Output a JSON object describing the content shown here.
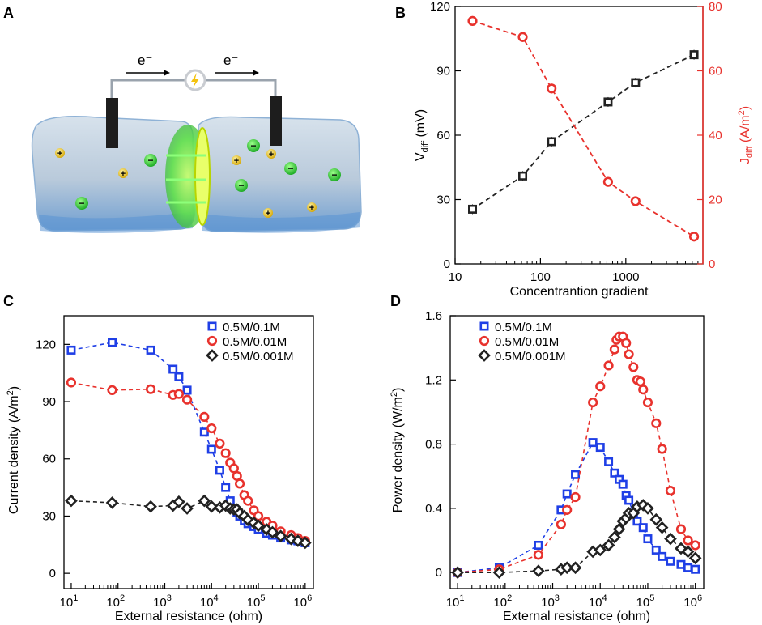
{
  "panels": {
    "a": "A",
    "b": "B",
    "c": "C",
    "d": "D"
  },
  "schematic": {
    "electron_left": "e⁻",
    "electron_right": "e⁻",
    "plus": "+",
    "minus": "−"
  },
  "colors": {
    "black": "#222222",
    "red": "#e8322d",
    "blue": "#1f3fe6",
    "dark_red": "#e8322d",
    "gel": "#c9d8e6",
    "bulb": "#f4c20d"
  },
  "chart_data": [
    {
      "id": "B",
      "type": "scatter",
      "xscale": "log",
      "xlim": [
        10,
        8000
      ],
      "x_ticks": [
        10,
        100,
        1000
      ],
      "x_tick_labels": [
        "10",
        "100",
        "1000"
      ],
      "xlabel": "Concentrantion gradient",
      "ylabel_left_main": "V",
      "ylabel_left_sub": "diff",
      "ylabel_left_unit": " (mV)",
      "ylim_left": [
        0,
        120
      ],
      "y_ticks_left": [
        0,
        30,
        60,
        90,
        120
      ],
      "ylabel_right_main": "J",
      "ylabel_right_sub": "diff",
      "ylabel_right_unit": " (A/m",
      "ylabel_right_sup": "2",
      "ylabel_right_close": ")",
      "ylim_right": [
        0,
        80
      ],
      "y_ticks_right": [
        0,
        20,
        40,
        60,
        80
      ],
      "x": [
        16,
        62,
        135,
        620,
        1300,
        6300
      ],
      "series": [
        {
          "name": "Vdiff",
          "axis": "left",
          "color": "#222222",
          "marker": "square",
          "values": [
            25.5,
            41,
            57,
            75.5,
            84.5,
            97.5
          ]
        },
        {
          "name": "Jdiff",
          "axis": "right",
          "color": "#e8322d",
          "marker": "circle",
          "values": [
            75.5,
            70.5,
            54.5,
            25.5,
            19.5,
            8.5
          ]
        }
      ]
    },
    {
      "id": "C",
      "type": "scatter",
      "xscale": "log",
      "xlim": [
        7,
        1500000
      ],
      "x_ticks": [
        10,
        100,
        1000,
        10000,
        100000,
        1000000
      ],
      "x_tick_bases": [
        "10",
        "10",
        "10",
        "10",
        "10",
        "10"
      ],
      "x_tick_exps": [
        "1",
        "2",
        "3",
        "4",
        "5",
        "6"
      ],
      "xlabel": "External resistance (ohm)",
      "ylabel_main": "Current density (A/m",
      "ylabel_sup": "2",
      "ylabel_close": ")",
      "ylim": [
        -8,
        135
      ],
      "y_ticks": [
        0,
        30,
        60,
        90,
        120
      ],
      "legend": [
        "0.5M/0.1M",
        "0.5M/0.01M",
        "0.5M/0.001M"
      ],
      "series": [
        {
          "name": "0.5M/0.1M",
          "color": "#1f3fe6",
          "marker": "square",
          "x": [
            10,
            75,
            500,
            1500,
            2000,
            3000,
            7000,
            10000,
            15000,
            20000,
            25000,
            30000,
            35000,
            40000,
            50000,
            60000,
            80000,
            100000,
            150000,
            200000,
            300000,
            500000,
            700000,
            1000000
          ],
          "y": [
            117,
            121,
            117,
            107,
            103,
            96,
            74,
            65,
            54,
            45,
            38,
            34,
            32,
            30,
            27.5,
            26,
            24.5,
            23,
            21,
            20,
            18.5,
            17.5,
            17,
            16
          ]
        },
        {
          "name": "0.5M/0.01M",
          "color": "#e8322d",
          "marker": "circle",
          "x": [
            10,
            75,
            500,
            1500,
            2000,
            3000,
            7000,
            10000,
            15000,
            20000,
            25000,
            30000,
            35000,
            40000,
            50000,
            60000,
            80000,
            100000,
            150000,
            200000,
            300000,
            500000,
            700000,
            1000000
          ],
          "y": [
            100,
            96,
            96.5,
            93.5,
            94,
            91,
            82,
            76,
            68,
            63,
            58,
            55,
            51,
            47,
            41,
            38,
            33,
            30,
            27,
            25,
            22,
            20,
            18.5,
            17
          ]
        },
        {
          "name": "0.5M/0.001M",
          "color": "#222222",
          "marker": "diamond",
          "x": [
            10,
            75,
            500,
            1500,
            2000,
            3000,
            7000,
            10000,
            15000,
            20000,
            25000,
            30000,
            35000,
            40000,
            50000,
            60000,
            80000,
            100000,
            150000,
            200000,
            300000,
            500000,
            700000,
            1000000
          ],
          "y": [
            38,
            37,
            35,
            35.5,
            37.5,
            34,
            38,
            35,
            34.5,
            35.5,
            34,
            33.5,
            33.5,
            31.5,
            30,
            28,
            26.5,
            25,
            23,
            21.5,
            19.5,
            18,
            17,
            16
          ]
        }
      ]
    },
    {
      "id": "D",
      "type": "scatter",
      "xscale": "log",
      "xlim": [
        7,
        1500000
      ],
      "x_ticks": [
        10,
        100,
        1000,
        10000,
        100000,
        1000000
      ],
      "x_tick_bases": [
        "10",
        "10",
        "10",
        "10",
        "10",
        "10"
      ],
      "x_tick_exps": [
        "1",
        "2",
        "3",
        "4",
        "5",
        "6"
      ],
      "xlabel": "External resistance (ohm)",
      "ylabel_main": "Power density (W/m",
      "ylabel_sup": "2",
      "ylabel_close": ")",
      "ylim": [
        -0.1,
        1.6
      ],
      "y_ticks": [
        0,
        0.4,
        0.8,
        1.2,
        1.6
      ],
      "y_tick_labels": [
        "0",
        "0.4",
        "0.8",
        "1.2",
        "1.6"
      ],
      "legend": [
        "0.5M/0.1M",
        "0.5M/0.01M",
        "0.5M/0.001M"
      ],
      "series": [
        {
          "name": "0.5M/0.1M",
          "color": "#1f3fe6",
          "marker": "square",
          "x": [
            10,
            75,
            500,
            1500,
            2000,
            3000,
            7000,
            10000,
            15000,
            20000,
            25000,
            30000,
            35000,
            40000,
            50000,
            60000,
            80000,
            100000,
            150000,
            200000,
            300000,
            500000,
            700000,
            1000000
          ],
          "y": [
            0,
            0.03,
            0.17,
            0.39,
            0.49,
            0.61,
            0.81,
            0.78,
            0.69,
            0.62,
            0.58,
            0.55,
            0.48,
            0.45,
            0.37,
            0.32,
            0.28,
            0.21,
            0.14,
            0.1,
            0.07,
            0.05,
            0.03,
            0.02
          ]
        },
        {
          "name": "0.5M/0.01M",
          "color": "#e8322d",
          "marker": "circle",
          "x": [
            10,
            75,
            500,
            1500,
            2000,
            3000,
            7000,
            10000,
            15000,
            20000,
            22000,
            25000,
            30000,
            35000,
            40000,
            50000,
            60000,
            70000,
            80000,
            100000,
            150000,
            200000,
            300000,
            500000,
            700000,
            1000000
          ],
          "y": [
            0,
            0.02,
            0.11,
            0.3,
            0.39,
            0.47,
            1.06,
            1.16,
            1.29,
            1.39,
            1.45,
            1.47,
            1.47,
            1.43,
            1.36,
            1.28,
            1.2,
            1.19,
            1.14,
            1.06,
            0.93,
            0.77,
            0.51,
            0.27,
            0.2,
            0.17
          ]
        },
        {
          "name": "0.5M/0.001M",
          "color": "#222222",
          "marker": "diamond",
          "x": [
            10,
            75,
            500,
            1500,
            2000,
            3000,
            7000,
            10000,
            15000,
            20000,
            25000,
            30000,
            35000,
            40000,
            50000,
            60000,
            80000,
            100000,
            150000,
            200000,
            300000,
            500000,
            700000,
            1000000
          ],
          "y": [
            0,
            0,
            0.01,
            0.02,
            0.03,
            0.03,
            0.13,
            0.14,
            0.17,
            0.22,
            0.27,
            0.32,
            0.34,
            0.37,
            0.37,
            0.41,
            0.42,
            0.4,
            0.33,
            0.28,
            0.21,
            0.15,
            0.13,
            0.09
          ]
        }
      ]
    }
  ]
}
